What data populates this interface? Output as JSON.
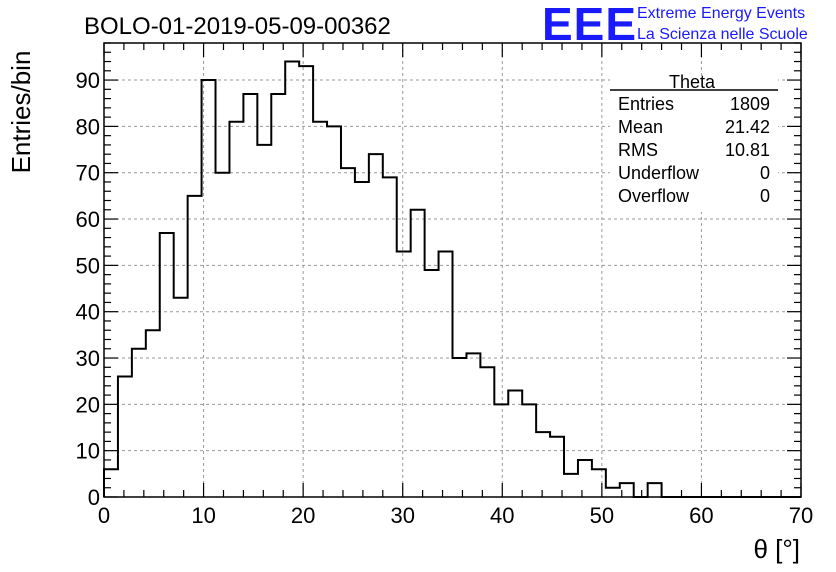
{
  "chart_data": {
    "type": "histogram",
    "title": "BOLO-01-2019-05-09-00362",
    "xlabel": "θ [°]",
    "ylabel": "Entries/bin",
    "xlim": [
      0,
      70
    ],
    "ylim": [
      0,
      98
    ],
    "grid": true,
    "x_ticks": [
      0,
      10,
      20,
      30,
      40,
      50,
      60,
      70
    ],
    "y_ticks": [
      0,
      10,
      20,
      30,
      40,
      50,
      60,
      70,
      80,
      90
    ],
    "bin_width": 1.4,
    "bin_edges_start": 0,
    "values": [
      6,
      26,
      32,
      36,
      57,
      43,
      65,
      90,
      70,
      81,
      87,
      76,
      87,
      94,
      93,
      81,
      80,
      71,
      68,
      74,
      69,
      53,
      62,
      49,
      53,
      30,
      31,
      28,
      20,
      23,
      20,
      14,
      13,
      5,
      8,
      6,
      2,
      3,
      0,
      3,
      0,
      0,
      0,
      0,
      0,
      0,
      0,
      0,
      0,
      0
    ],
    "series_color": "#000000",
    "stats": {
      "name": "Theta",
      "rows": [
        {
          "label": "Entries",
          "value": "1809"
        },
        {
          "label": "Mean",
          "value": "21.42"
        },
        {
          "label": "RMS",
          "value": "10.81"
        },
        {
          "label": "Underflow",
          "value": "0"
        },
        {
          "label": "Overflow",
          "value": "0"
        }
      ]
    }
  },
  "logo": {
    "mark": "EEE",
    "line1": "Extreme Energy Events",
    "line2": "La Scienza nelle Scuole",
    "color": "#1a1aff"
  }
}
